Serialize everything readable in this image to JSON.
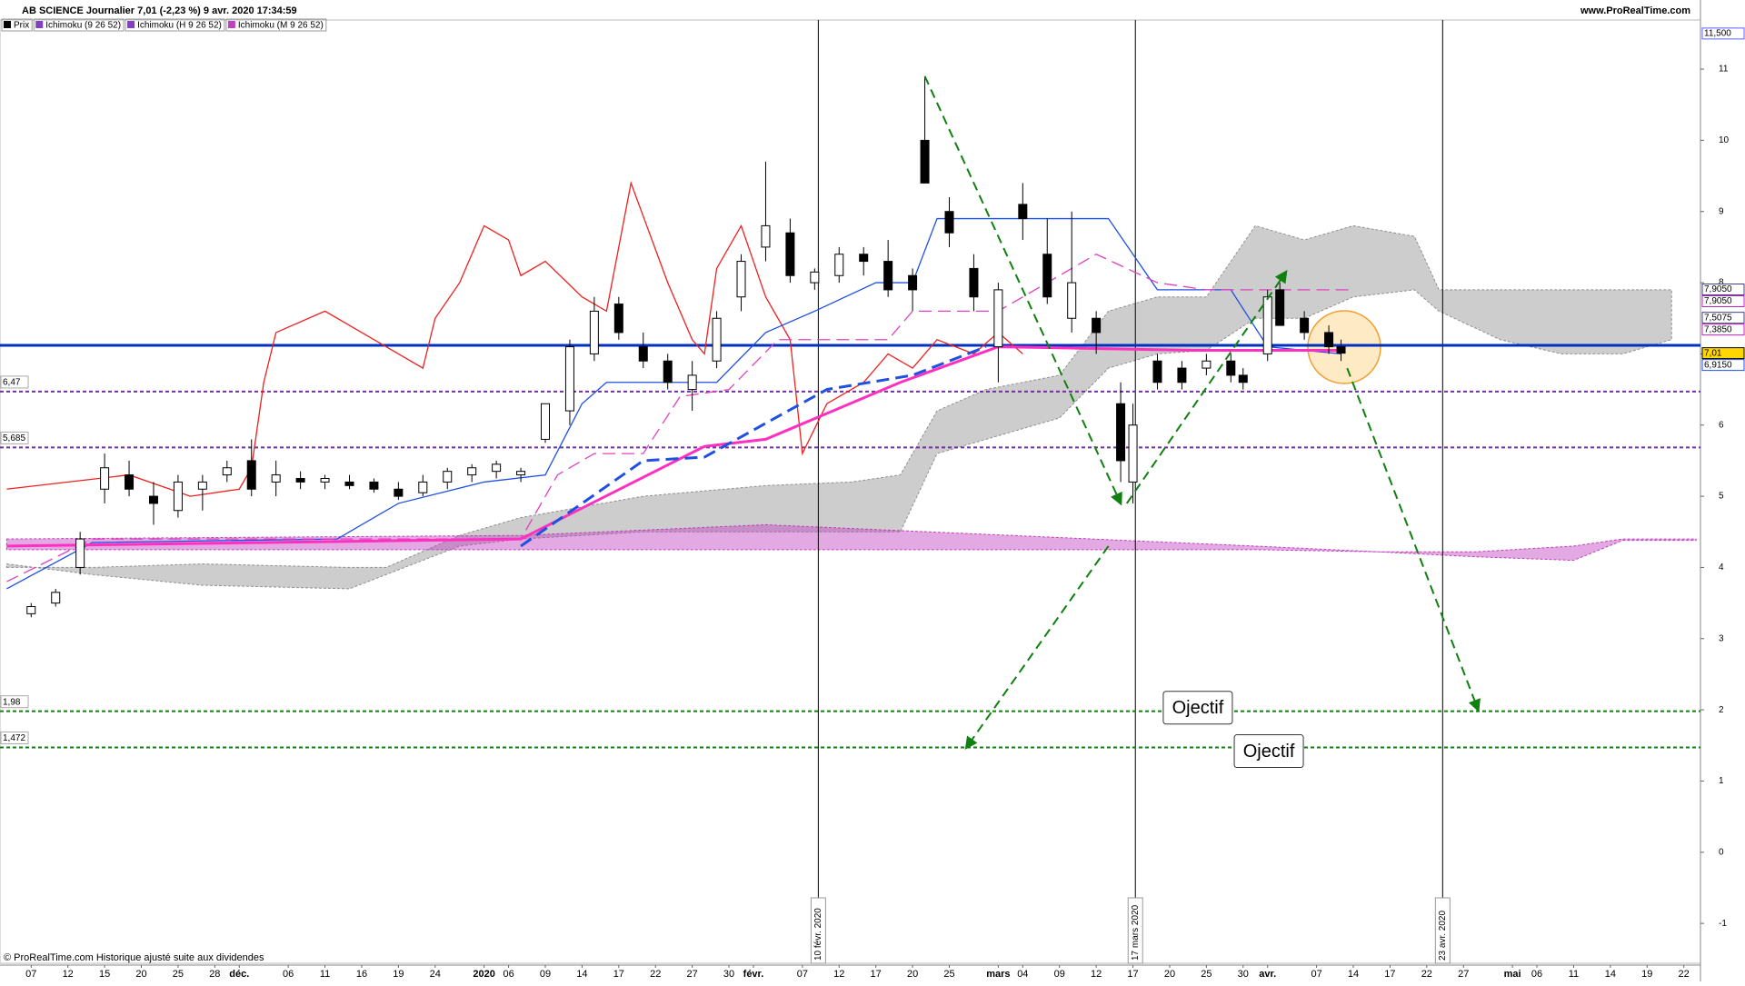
{
  "chart_data": {
    "type": "candlestick",
    "title": "AB SCIENCE Journalier 7,01 (-2,23 %) 9 avr. 2020 17:34:59",
    "legend": [
      {
        "text": "Prix",
        "color": "#000000"
      },
      {
        "text": "Ichimoku (9 26 52)",
        "color": "#8040c0"
      },
      {
        "text": "Ichimoku (H 9 26 52)",
        "color": "#8040c0"
      },
      {
        "text": "Ichimoku (M 9 26 52)",
        "color": "#c040c0"
      }
    ],
    "site": "www.ProRealTime.com",
    "footer": "© ProRealTime.com Historique ajusté suite aux dividendes",
    "xlim": [
      -2.545,
      136.36
    ],
    "ylim": [
      -1.56,
      11.69
    ],
    "xticks": [
      {
        "value": 0,
        "label": "07"
      },
      {
        "value": 3,
        "label": "12"
      },
      {
        "value": 6,
        "label": "15"
      },
      {
        "value": 9,
        "label": "20"
      },
      {
        "value": 12,
        "label": "25"
      },
      {
        "value": 15,
        "label": "28"
      },
      {
        "value": 17,
        "label": "déc."
      },
      {
        "value": 21,
        "label": "06"
      },
      {
        "value": 24,
        "label": "11"
      },
      {
        "value": 27,
        "label": "16"
      },
      {
        "value": 30,
        "label": "19"
      },
      {
        "value": 33,
        "label": "24"
      },
      {
        "value": 37,
        "label": "2020"
      },
      {
        "value": 39,
        "label": "06"
      },
      {
        "value": 42,
        "label": "09"
      },
      {
        "value": 45,
        "label": "14"
      },
      {
        "value": 48,
        "label": "17"
      },
      {
        "value": 51,
        "label": "22"
      },
      {
        "value": 54,
        "label": "27"
      },
      {
        "value": 57,
        "label": "30"
      },
      {
        "value": 59,
        "label": "févr."
      },
      {
        "value": 63,
        "label": "07"
      },
      {
        "value": 66,
        "label": "12"
      },
      {
        "value": 69,
        "label": "17"
      },
      {
        "value": 72,
        "label": "20"
      },
      {
        "value": 75,
        "label": "25"
      },
      {
        "value": 79,
        "label": "mars"
      },
      {
        "value": 81,
        "label": "04"
      },
      {
        "value": 84,
        "label": "09"
      },
      {
        "value": 87,
        "label": "12"
      },
      {
        "value": 90,
        "label": "17"
      },
      {
        "value": 93,
        "label": "20"
      },
      {
        "value": 96,
        "label": "25"
      },
      {
        "value": 99,
        "label": "30"
      },
      {
        "value": 101,
        "label": "avr."
      },
      {
        "value": 105,
        "label": "07"
      },
      {
        "value": 108,
        "label": "14"
      },
      {
        "value": 111,
        "label": "17"
      },
      {
        "value": 114,
        "label": "22"
      },
      {
        "value": 117,
        "label": "27"
      },
      {
        "value": 121,
        "label": "mai"
      },
      {
        "value": 123,
        "label": "06"
      },
      {
        "value": 126,
        "label": "11"
      },
      {
        "value": 129,
        "label": "14"
      },
      {
        "value": 132,
        "label": "19"
      },
      {
        "value": 135,
        "label": "22"
      }
    ],
    "yticks": [
      -1,
      0,
      1,
      2,
      3,
      4,
      5,
      6,
      7,
      8,
      9,
      10,
      11
    ],
    "x": [
      0,
      2,
      4,
      6,
      8,
      10,
      12,
      14,
      16,
      18,
      20,
      22,
      24,
      26,
      28,
      30,
      32,
      34,
      36,
      38,
      40,
      42,
      44,
      46,
      48,
      50,
      52,
      54,
      56,
      58,
      60,
      62,
      64,
      66,
      68,
      70,
      72,
      73,
      75,
      77,
      79,
      81,
      83,
      85,
      87,
      89,
      90,
      92,
      94,
      96,
      98,
      99,
      101,
      102,
      104,
      106,
      107
    ],
    "open": [
      3.35,
      3.5,
      4.0,
      5.1,
      5.3,
      5.0,
      4.8,
      5.1,
      5.3,
      5.5,
      5.2,
      5.25,
      5.2,
      5.2,
      5.2,
      5.1,
      5.05,
      5.2,
      5.3,
      5.35,
      5.3,
      5.8,
      6.2,
      7.0,
      7.7,
      7.1,
      6.9,
      6.5,
      6.9,
      7.8,
      8.5,
      8.7,
      8.0,
      8.1,
      8.4,
      8.3,
      8.1,
      10.0,
      9.0,
      8.2,
      7.1,
      9.1,
      8.4,
      7.5,
      7.5,
      6.3,
      5.2,
      6.9,
      6.8,
      6.8,
      6.9,
      6.7,
      7.0,
      7.9,
      7.5,
      7.3,
      7.1
    ],
    "high": [
      3.5,
      3.7,
      4.5,
      5.6,
      5.5,
      5.2,
      5.3,
      5.3,
      5.5,
      5.8,
      5.5,
      5.35,
      5.3,
      5.3,
      5.25,
      5.2,
      5.3,
      5.4,
      5.45,
      5.5,
      5.4,
      6.3,
      7.2,
      7.8,
      7.8,
      7.3,
      7.0,
      6.9,
      7.6,
      8.4,
      9.7,
      8.9,
      8.2,
      8.5,
      8.5,
      8.6,
      8.2,
      10.9,
      9.2,
      8.4,
      8.0,
      9.4,
      8.9,
      9.0,
      7.6,
      6.6,
      6.3,
      7.0,
      6.9,
      7.0,
      7.0,
      6.8,
      7.9,
      8.0,
      7.6,
      7.4,
      7.2
    ],
    "low": [
      3.3,
      3.45,
      3.9,
      4.9,
      5.0,
      4.6,
      4.7,
      4.8,
      5.2,
      5.0,
      5.0,
      5.1,
      5.1,
      5.1,
      5.05,
      4.95,
      5.0,
      5.1,
      5.2,
      5.25,
      5.2,
      5.75,
      6.0,
      6.9,
      7.2,
      6.8,
      6.5,
      6.2,
      6.8,
      7.6,
      8.3,
      8.0,
      7.9,
      8.0,
      8.1,
      7.8,
      7.6,
      9.4,
      8.5,
      7.6,
      6.6,
      8.6,
      7.7,
      7.3,
      7.0,
      5.2,
      4.9,
      6.5,
      6.5,
      6.7,
      6.6,
      6.5,
      6.9,
      7.4,
      7.2,
      7.0,
      6.9
    ],
    "close": [
      3.45,
      3.65,
      4.4,
      5.4,
      5.1,
      4.9,
      5.2,
      5.2,
      5.4,
      5.1,
      5.3,
      5.2,
      5.25,
      5.15,
      5.1,
      5.0,
      5.2,
      5.35,
      5.4,
      5.45,
      5.35,
      6.3,
      7.1,
      7.6,
      7.3,
      6.9,
      6.6,
      6.7,
      7.5,
      8.3,
      8.8,
      8.1,
      8.15,
      8.4,
      8.3,
      7.9,
      7.9,
      9.4,
      8.7,
      7.8,
      7.9,
      8.9,
      7.8,
      8.0,
      7.3,
      5.5,
      6.0,
      6.6,
      6.6,
      6.9,
      6.7,
      6.6,
      7.8,
      7.4,
      7.3,
      7.1,
      7.01
    ],
    "clouds": [
      {
        "color": "#909090",
        "x": [
          -2,
          5,
          14,
          26,
          29,
          35,
          40,
          50,
          60,
          67,
          71,
          74,
          78,
          84,
          88,
          92,
          96,
          100,
          104,
          108,
          113,
          115,
          120,
          125,
          130,
          134
        ],
        "a": [
          4.0,
          4.0,
          4.05,
          4.0,
          4.0,
          4.45,
          4.7,
          5.0,
          5.15,
          5.2,
          5.3,
          6.2,
          6.5,
          6.7,
          7.6,
          7.8,
          7.8,
          8.8,
          8.6,
          8.8,
          8.65,
          7.9,
          7.9,
          7.9,
          7.9,
          7.9
        ],
        "b": [
          4.05,
          3.9,
          3.75,
          3.7,
          3.9,
          4.3,
          4.4,
          4.5,
          4.5,
          4.5,
          4.5,
          5.6,
          5.8,
          6.1,
          6.8,
          7.0,
          7.05,
          7.5,
          7.5,
          7.8,
          7.9,
          7.6,
          7.2,
          7.0,
          7.0,
          7.2
        ]
      },
      {
        "color": "#c040c0",
        "x": [
          -2,
          40,
          60,
          80,
          100,
          110,
          118,
          126,
          130,
          136
        ],
        "a": [
          4.4,
          4.45,
          4.6,
          4.45,
          4.3,
          4.22,
          4.22,
          4.3,
          4.4,
          4.4
        ],
        "b": [
          4.25,
          4.25,
          4.25,
          4.25,
          4.25,
          4.22,
          4.15,
          4.1,
          4.38,
          4.38
        ]
      }
    ],
    "lines": [
      {
        "color": "#ee2020",
        "dash": false,
        "thick": false,
        "x": [
          -2,
          8,
          13,
          17,
          18,
          19,
          20,
          24,
          26,
          30,
          32,
          33,
          35,
          37,
          39,
          40,
          42,
          45,
          47,
          49,
          52,
          54,
          55,
          56,
          58,
          60,
          62,
          63,
          65,
          68,
          70,
          72,
          74,
          77,
          79,
          81
        ],
        "values": [
          5.1,
          5.3,
          5.0,
          5.1,
          5.4,
          6.6,
          7.3,
          7.6,
          7.4,
          7.0,
          6.8,
          7.5,
          8.0,
          8.8,
          8.6,
          8.1,
          8.3,
          7.8,
          7.6,
          9.4,
          8.0,
          7.2,
          7.0,
          8.2,
          8.8,
          7.8,
          7.2,
          5.6,
          6.3,
          6.6,
          7.0,
          6.8,
          7.2,
          7.0,
          7.3,
          7.0
        ]
      },
      {
        "color": "#2050e0",
        "dash": false,
        "thick": false,
        "x": [
          -2,
          5,
          25,
          30,
          37,
          42,
          45,
          47,
          56,
          60,
          64,
          69,
          72,
          74,
          78,
          82,
          88,
          92,
          98,
          101,
          107
        ],
        "values": [
          3.7,
          4.35,
          4.4,
          4.9,
          5.2,
          5.3,
          6.3,
          6.6,
          6.6,
          7.3,
          7.6,
          8.0,
          8.0,
          8.9,
          8.9,
          8.9,
          8.9,
          7.9,
          7.9,
          7.1,
          7.0
        ]
      },
      {
        "color": "#e040c0",
        "dash": true,
        "thick": false,
        "x": [
          -2,
          5,
          40,
          43,
          46,
          50,
          53,
          57,
          61,
          64,
          70,
          72,
          79,
          87,
          92,
          96,
          103,
          108
        ],
        "values": [
          3.8,
          4.4,
          4.4,
          5.3,
          5.6,
          5.6,
          6.4,
          6.5,
          7.2,
          7.2,
          7.2,
          7.6,
          7.6,
          8.4,
          8.0,
          7.9,
          7.9,
          7.9
        ]
      },
      {
        "color": "#ff30c0",
        "dash": false,
        "thick": true,
        "x": [
          -2,
          40,
          55,
          60,
          71,
          79,
          95,
          107
        ],
        "values": [
          4.3,
          4.4,
          5.7,
          5.8,
          6.6,
          7.1,
          7.05,
          7.05
        ]
      },
      {
        "color": "#2050e0",
        "dash": true,
        "thick": true,
        "x": [
          40,
          50,
          55,
          65,
          72,
          78
        ],
        "values": [
          4.3,
          5.5,
          5.55,
          6.5,
          6.7,
          7.1
        ]
      }
    ],
    "levels": [
      {
        "value": 7.12,
        "color": "#0030c0",
        "dash": false
      },
      {
        "value": 6.47,
        "label": "6,47",
        "color": "#7030a0",
        "dash": true
      },
      {
        "value": 5.685,
        "label": "5,685",
        "color": "#7030a0",
        "dash": true
      },
      {
        "value": 1.98,
        "label": "1,98",
        "color": "#108010",
        "dash": true
      },
      {
        "value": 1.472,
        "label": "1,472",
        "color": "#108010",
        "dash": true
      }
    ],
    "events": [
      {
        "x": 64.3,
        "label": "10 févr. 2020"
      },
      {
        "x": 90.2,
        "label": "17 mars 2020"
      },
      {
        "x": 115.3,
        "label": "23 avr. 2020"
      }
    ],
    "projections": [
      {
        "x": [
          73,
          89
        ],
        "y": [
          10.9,
          4.9
        ]
      },
      {
        "x": [
          89.5,
          102.5
        ],
        "y": [
          4.9,
          8.15
        ]
      },
      {
        "x": [
          88,
          76.4
        ],
        "y": [
          4.3,
          1.47
        ]
      },
      {
        "x": [
          107.5,
          118.2
        ],
        "y": [
          6.8,
          2.0
        ]
      }
    ],
    "annotations": [
      {
        "text": "Ojectif",
        "x": 95.3,
        "y": 2.03
      },
      {
        "text": "Ojectif",
        "x": 101.1,
        "y": 1.42
      }
    ],
    "price_labels": [
      {
        "value": 11.5,
        "label": "11,500",
        "color": "#6060ff"
      },
      {
        "value": 7.905,
        "label": "7,9050",
        "color": "#404080"
      },
      {
        "value": 7.905,
        "label": "7,9050",
        "color": "#c020c0"
      },
      {
        "value": 7.5075,
        "label": "7,5075",
        "color": "#404080"
      },
      {
        "value": 7.385,
        "label": "7,3850",
        "color": "#c020c0"
      },
      {
        "value": 7.01,
        "label": "7,01",
        "color": "#000000",
        "fill": "#ffd700"
      },
      {
        "value": 6.915,
        "label": "6,9150",
        "color": "#2050e0"
      }
    ]
  }
}
